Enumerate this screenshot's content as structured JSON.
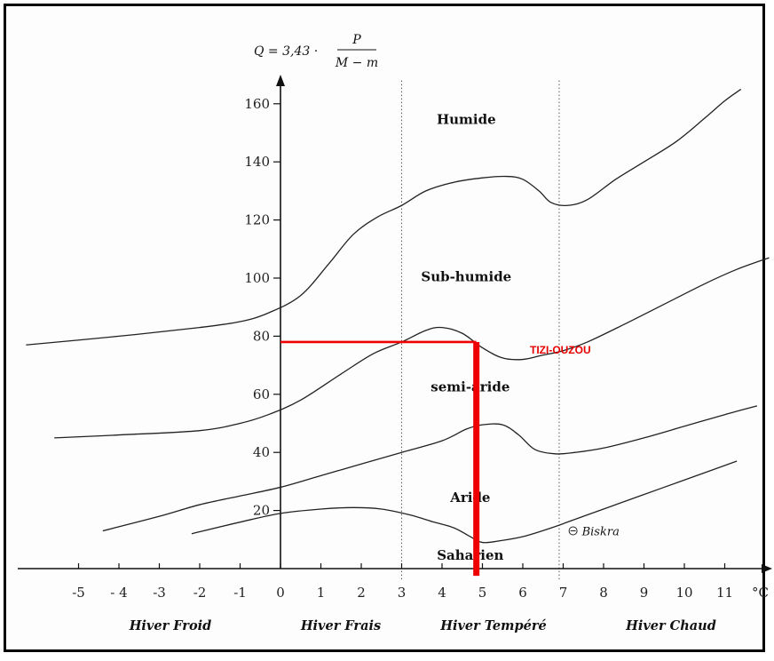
{
  "chart_data": {
    "type": "line",
    "formula": {
      "lhs": "Q = 3,43 ·",
      "numerator": "P",
      "denominator": "M − m"
    },
    "x_unit": "°C",
    "xlim": [
      -6.4,
      12.1
    ],
    "ylim": [
      -12,
      172
    ],
    "x_ticks": [
      -5,
      -4,
      -3,
      -2,
      -1,
      0,
      1,
      2,
      3,
      4,
      5,
      6,
      7,
      8,
      9,
      10,
      11
    ],
    "x_tick_labels": [
      "-5",
      "- 4",
      "-3",
      "-2",
      "-1",
      "0",
      "1",
      "2",
      "3",
      "4",
      "5",
      "6",
      "7",
      "8",
      "9",
      "10",
      "11"
    ],
    "y_ticks": [
      20,
      40,
      60,
      80,
      100,
      120,
      140,
      160
    ],
    "vertical_dividers": [
      3,
      6.9
    ],
    "zones": [
      {
        "label": "Humide",
        "x": 4.6,
        "y": 153
      },
      {
        "label": "Sub-humide",
        "x": 4.6,
        "y": 99
      },
      {
        "label": "semi-aride",
        "x": 4.7,
        "y": 61
      },
      {
        "label": "Aride",
        "x": 4.7,
        "y": 23
      },
      {
        "label": "Saharien",
        "x": 4.7,
        "y": 3
      }
    ],
    "winter_classes": [
      "Hiver Froid",
      "Hiver Frais",
      "Hiver Tempéré",
      "Hiver Chaud"
    ],
    "curves": [
      {
        "points": [
          [
            -6.3,
            77
          ],
          [
            -4,
            80
          ],
          [
            -2,
            83
          ],
          [
            -1,
            85
          ],
          [
            -0.3,
            88
          ],
          [
            0.5,
            94
          ],
          [
            1.2,
            105
          ],
          [
            1.8,
            115
          ],
          [
            2.4,
            121
          ],
          [
            3,
            125
          ],
          [
            3.6,
            130
          ],
          [
            4.3,
            133
          ],
          [
            5,
            134.5
          ],
          [
            5.6,
            135
          ],
          [
            6,
            134
          ],
          [
            6.4,
            130
          ],
          [
            6.7,
            126
          ],
          [
            7.1,
            125
          ],
          [
            7.6,
            127
          ],
          [
            8.3,
            134
          ],
          [
            9,
            140
          ],
          [
            9.8,
            147
          ],
          [
            10.5,
            155
          ],
          [
            11,
            161
          ],
          [
            11.4,
            165
          ]
        ]
      },
      {
        "points": [
          [
            -5.6,
            45
          ],
          [
            -4,
            46
          ],
          [
            -2,
            47.5
          ],
          [
            -1,
            50
          ],
          [
            -0.3,
            53
          ],
          [
            0.5,
            58
          ],
          [
            1.5,
            67
          ],
          [
            2.3,
            74
          ],
          [
            3,
            78
          ],
          [
            3.6,
            82
          ],
          [
            4,
            83
          ],
          [
            4.5,
            81
          ],
          [
            5,
            76
          ],
          [
            5.5,
            72.5
          ],
          [
            6,
            72
          ],
          [
            6.5,
            73.5
          ],
          [
            7,
            75
          ],
          [
            7.6,
            78
          ],
          [
            8.5,
            84
          ],
          [
            9.5,
            91
          ],
          [
            10.5,
            98
          ],
          [
            11.3,
            103
          ],
          [
            12.1,
            107
          ]
        ]
      },
      {
        "points": [
          [
            -4.4,
            13
          ],
          [
            -3,
            18
          ],
          [
            -2,
            22
          ],
          [
            -1,
            25
          ],
          [
            0,
            28
          ],
          [
            1,
            32
          ],
          [
            2,
            36
          ],
          [
            3,
            40
          ],
          [
            4,
            44
          ],
          [
            4.6,
            48
          ],
          [
            5,
            49.5
          ],
          [
            5.5,
            49.5
          ],
          [
            5.9,
            46
          ],
          [
            6.3,
            41
          ],
          [
            6.8,
            39.5
          ],
          [
            7.3,
            40
          ],
          [
            8,
            41.5
          ],
          [
            9,
            45
          ],
          [
            10,
            49
          ],
          [
            11,
            53
          ],
          [
            11.8,
            56
          ]
        ]
      },
      {
        "points": [
          [
            -2.2,
            12
          ],
          [
            -1,
            16
          ],
          [
            0,
            19
          ],
          [
            1,
            20.5
          ],
          [
            1.8,
            21
          ],
          [
            2.5,
            20.5
          ],
          [
            3.2,
            18.5
          ],
          [
            3.8,
            16
          ],
          [
            4.3,
            14
          ],
          [
            4.7,
            11
          ],
          [
            5,
            9
          ],
          [
            5.4,
            9.5
          ],
          [
            6,
            11
          ],
          [
            6.7,
            14
          ],
          [
            7.5,
            18
          ],
          [
            8.5,
            23
          ],
          [
            9.5,
            28
          ],
          [
            10.5,
            33
          ],
          [
            11.3,
            37
          ]
        ]
      }
    ],
    "station": {
      "name": "TIZI-OUZOU",
      "x": 4.85,
      "y": 78
    },
    "reference_station": {
      "name": "Biskra",
      "x": 7.2,
      "y": 13
    }
  }
}
